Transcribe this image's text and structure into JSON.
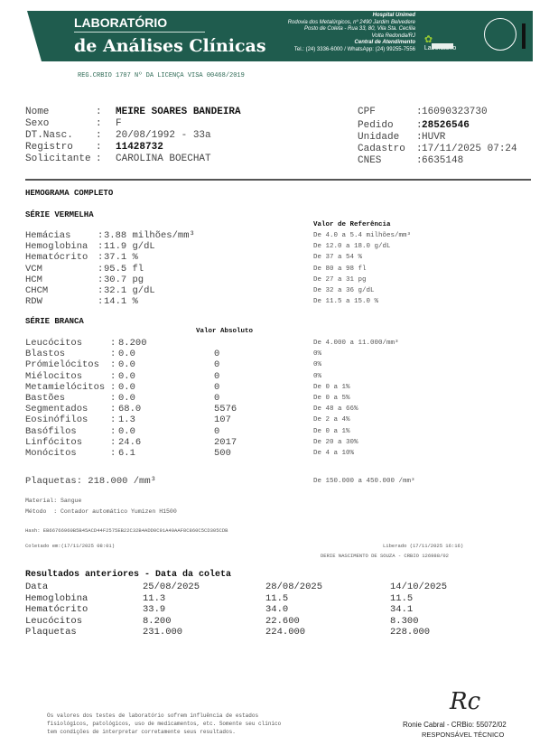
{
  "header": {
    "lab_line1": "LABORATÓRIO",
    "lab_line2": "de Análises Clínicas",
    "hospital": "Hospital Unimed",
    "address1": "Rodovia dos Metalúrgicos, nº 2490 Jardim Belvedere",
    "address2": "Posto de Coleta - Rua 33, 80, Vila Sta. Cecília",
    "address3": "Volta Redonda/RJ",
    "central": "Central de Atendimento",
    "phone": "Tel.: (24) 3336-6000 / WhatsApp: (24) 99255-7556",
    "partner_logo": "Laboratório",
    "seal": "PALC",
    "brand_color": "#1f5c4e",
    "registration": "REG.CRBIO 1707 Nº DA LICENÇA VISA 00468/2019"
  },
  "patient": {
    "left": [
      {
        "label": "Nome",
        "value": "MEIRE SOARES BANDEIRA",
        "bold": true
      },
      {
        "label": "Sexo",
        "value": "F",
        "bold": false
      },
      {
        "label": "DT.Nasc.",
        "value": "20/08/1992 - 33a",
        "bold": false
      },
      {
        "label": "Registro",
        "value": "11428732",
        "bold": true
      },
      {
        "label": "Solicitante",
        "value": "CAROLINA BOECHAT",
        "bold": false
      }
    ],
    "right": [
      {
        "label": "CPF",
        "value": "16090323730",
        "bold": false
      },
      {
        "label": "Pedido",
        "value": "28526546",
        "bold": true
      },
      {
        "label": "Unidade",
        "value": "HUVR",
        "bold": false
      },
      {
        "label": "Cadastro",
        "value": "17/11/2025 07:24",
        "bold": false
      },
      {
        "label": "CNES",
        "value": "6635148",
        "bold": false
      }
    ]
  },
  "exam": {
    "title": "HEMOGRAMA COMPLETO",
    "red_title": "SÉRIE VERMELHA",
    "ref_header": "Valor de Referência",
    "red": [
      {
        "label": "Hemácias   ",
        "value": "3.88 milhões/mm³",
        "ref": "De 4.0 a 5.4 milhões/mm³"
      },
      {
        "label": "Hemoglobina",
        "value": "11.9 g/dL",
        "ref": "De 12.0 a 18.0 g/dL"
      },
      {
        "label": "Hematócrito",
        "value": "37.1 %",
        "ref": "De 37 a 54 %"
      },
      {
        "label": "VCM        ",
        "value": "95.5 fl",
        "ref": "De 80 a 98 fl"
      },
      {
        "label": "HCM        ",
        "value": "30.7 pg",
        "ref": "De 27 a 31 pg"
      },
      {
        "label": "CHCM       ",
        "value": "32.1 g/dL",
        "ref": "De 32 a 36 g/dL"
      },
      {
        "label": "RDW        ",
        "value": "14.1 %",
        "ref": "De 11.5 a 15.0 %"
      }
    ],
    "white_title": "SÉRIE BRANCA",
    "abs_header": "Valor Absoluto",
    "white": [
      {
        "label": "Leucócitos     ",
        "value": "8.200",
        "abs": "",
        "ref": "De 4.000 a 11.000/mm³"
      },
      {
        "label": "Blastos        ",
        "value": "0.0",
        "abs": "0",
        "ref": "0%"
      },
      {
        "label": "Prómielócitos  ",
        "value": "0.0",
        "abs": "0",
        "ref": "0%"
      },
      {
        "label": "Miélocitos     ",
        "value": "0.0",
        "abs": "0",
        "ref": "0%"
      },
      {
        "label": "Metamielócitos",
        "value": "0.0",
        "abs": "0",
        "ref": "De 0 a 1%"
      },
      {
        "label": "Bastões        ",
        "value": "0.0",
        "abs": "0",
        "ref": "De 0 a 5%"
      },
      {
        "label": "Segmentados    ",
        "value": "68.0",
        "abs": "5576",
        "ref": "De 48 a 66%"
      },
      {
        "label": "Eosinófilos    ",
        "value": "1.3",
        "abs": "107",
        "ref": "De 2 a 4%"
      },
      {
        "label": "Basófilos      ",
        "value": "0.0",
        "abs": "0",
        "ref": "De 0 a 1%"
      },
      {
        "label": "Linfócitos     ",
        "value": "24.6",
        "abs": "2017",
        "ref": "De 20 a 30%"
      },
      {
        "label": "Monócitos      ",
        "value": "6.1",
        "abs": "500",
        "ref": "De 4 a 10%"
      }
    ],
    "platelets": "Plaquetas: 218.000 /mm³",
    "platelets_ref": "De 150.000 a 450.000 /mm³",
    "material": "Material: Sangue",
    "method": "Método  : Contador automático Yumizen H1500",
    "hash": "Hash: EB66766960B5B45ACD44F2575EB22C32B4ADD0C91A40AAF8C860C5CD305CDB",
    "collected": "Coletado em:(17/11/2025 08:01)",
    "released": "Liberado (17/11/2025 16:16)",
    "released_by": "DERIE NASCIMENTO DE SOUZA - CRBIO 126988/02"
  },
  "previous": {
    "title": "Resultados anteriores - Data da coleta",
    "rows": [
      [
        "Data",
        "25/08/2025",
        "28/08/2025",
        "14/10/2025"
      ],
      [
        "Hemoglobina",
        "11.3",
        "11.5",
        "11.5"
      ],
      [
        "Hematócrito",
        "33.9",
        "34.0",
        "34.1"
      ],
      [
        "Leucócitos",
        "8.200",
        "22.600",
        "8.300"
      ],
      [
        "Plaquetas",
        "231.000",
        "224.000",
        "228.000"
      ]
    ]
  },
  "footer": {
    "disclaimer": "Os valores dos testes de laboratório sofrem influência de estados\nfisiológicos, patológicos, uso de medicamentos, etc. Somente seu clínico\ntem condições de interpretar corretamente seus resultados.",
    "signature": "Rc",
    "signer": "Ronie Cabral - CRBio: 55072/02",
    "role": "RESPONSÁVEL TÉCNICO"
  }
}
